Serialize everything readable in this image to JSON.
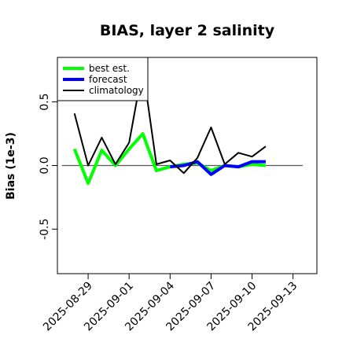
{
  "chart_data": {
    "type": "line",
    "title": "BIAS, layer 2 salinity",
    "xlabel": "",
    "ylabel": "Bias (1e-3)",
    "x_dates": [
      "2025-08-28",
      "2025-08-29",
      "2025-08-30",
      "2025-08-31",
      "2025-09-01",
      "2025-09-02",
      "2025-09-03",
      "2025-09-04",
      "2025-09-05",
      "2025-09-06",
      "2025-09-07",
      "2025-09-08",
      "2025-09-09",
      "2025-09-10",
      "2025-09-11"
    ],
    "x_ticks": [
      "2025-08-29",
      "2025-09-01",
      "2025-09-04",
      "2025-09-07",
      "2025-09-10",
      "2025-09-13"
    ],
    "highlight_tick": "2025-09-04",
    "highlight_color": "#228b22",
    "xlim": [
      "2025-08-26T18:00",
      "2025-09-14T18:00"
    ],
    "y_ticks": [
      -0.5,
      0.0,
      0.5
    ],
    "ylim": [
      -0.85,
      0.85
    ],
    "reference_line": 0.0,
    "legend_position": "top-left",
    "series": [
      {
        "name": "best est.",
        "color": "#00ff00",
        "values": [
          0.13,
          -0.14,
          0.12,
          0.0,
          0.13,
          0.25,
          -0.04,
          -0.01,
          0.01,
          0.02,
          -0.04,
          0.0,
          -0.01,
          0.01,
          0.0
        ]
      },
      {
        "name": "forecast",
        "color": "#0000ff",
        "values": [
          null,
          null,
          null,
          null,
          null,
          null,
          null,
          -0.01,
          0.0,
          0.03,
          -0.07,
          0.0,
          -0.01,
          0.03,
          0.03
        ]
      },
      {
        "name": "climatology",
        "color": "#000000",
        "values": [
          0.41,
          0.0,
          0.22,
          0.01,
          0.18,
          0.77,
          0.01,
          0.04,
          -0.06,
          0.06,
          0.3,
          0.01,
          0.1,
          0.07,
          0.15
        ]
      }
    ]
  }
}
